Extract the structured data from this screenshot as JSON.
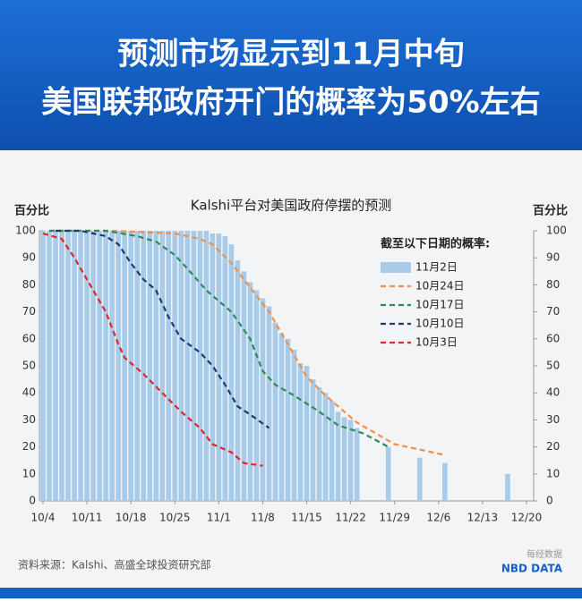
{
  "header": {
    "title_lines": [
      "预测市场显示到11月中旬",
      "美国联邦政府开门的概率为50%左右"
    ]
  },
  "chart_data": {
    "type": "combo",
    "title": "Kalshi平台对美国政府停摆的预测",
    "y_label": "百分比",
    "y2_label": "百分比",
    "legend_title": "截至以下日期的概率:",
    "xlim": [
      "10/4",
      "12/20"
    ],
    "xticks": [
      "10/4",
      "10/11",
      "10/18",
      "10/25",
      "11/1",
      "11/8",
      "11/15",
      "11/22",
      "11/29",
      "12/6",
      "12/13",
      "12/20"
    ],
    "ylim": [
      0,
      100
    ],
    "yticks": [
      0,
      10,
      20,
      30,
      40,
      50,
      60,
      70,
      80,
      90,
      100
    ],
    "y2lim": [
      0,
      100
    ],
    "y2ticks": [
      0,
      10,
      20,
      30,
      40,
      50,
      60,
      70,
      80,
      90,
      100
    ],
    "series": [
      {
        "name": "11月2日",
        "type": "bar",
        "color": "#a8cbea",
        "x": [
          "10/4",
          "10/5",
          "10/6",
          "10/7",
          "10/8",
          "10/9",
          "10/10",
          "10/11",
          "10/12",
          "10/13",
          "10/14",
          "10/15",
          "10/16",
          "10/17",
          "10/18",
          "10/19",
          "10/20",
          "10/21",
          "10/22",
          "10/23",
          "10/24",
          "10/25",
          "10/26",
          "10/27",
          "10/28",
          "10/29",
          "10/30",
          "10/31",
          "11/1",
          "11/2",
          "11/3",
          "11/4",
          "11/5",
          "11/6",
          "11/7",
          "11/8",
          "11/9",
          "11/10",
          "11/11",
          "11/12",
          "11/13",
          "11/14",
          "11/15",
          "11/16",
          "11/17",
          "11/18",
          "11/19",
          "11/20",
          "11/21",
          "11/22",
          "11/23",
          "11/28",
          "12/3",
          "12/7",
          "12/17"
        ],
        "values": [
          100,
          100,
          100,
          100,
          100,
          100,
          100,
          100,
          100,
          100,
          100,
          100,
          100,
          100,
          100,
          100,
          100,
          100,
          100,
          100,
          100,
          100,
          100,
          100,
          100,
          100,
          100,
          99,
          99,
          98,
          95,
          89,
          85,
          81,
          78,
          75,
          72,
          66,
          62,
          60,
          56,
          51,
          50,
          45,
          42,
          40,
          37,
          33,
          31,
          30,
          27,
          20,
          16,
          14,
          10
        ]
      },
      {
        "name": "10月24日",
        "type": "line",
        "style": "dashed",
        "color": "#f0904a",
        "x": [
          "10/5",
          "10/15",
          "10/25",
          "10/29",
          "10/31",
          "11/3",
          "11/6",
          "11/9",
          "11/12",
          "11/15",
          "11/18",
          "11/21",
          "11/23",
          "11/26",
          "11/29",
          "12/3",
          "12/7"
        ],
        "values": [
          100,
          100,
          99,
          97,
          95,
          88,
          79,
          70,
          58,
          46,
          39,
          33,
          29,
          25,
          21,
          19,
          17
        ]
      },
      {
        "name": "10月17日",
        "type": "line",
        "style": "dashed",
        "color": "#2e8b57",
        "x": [
          "10/5",
          "10/14",
          "10/19",
          "10/22",
          "10/25",
          "10/27",
          "10/30",
          "11/3",
          "11/6",
          "11/8",
          "11/10",
          "11/13",
          "11/17",
          "11/20",
          "11/24",
          "11/28"
        ],
        "values": [
          100,
          100,
          98,
          96,
          91,
          86,
          78,
          70,
          60,
          48,
          43,
          39,
          33,
          28,
          25,
          20
        ]
      },
      {
        "name": "10月10日",
        "type": "line",
        "style": "dashed",
        "color": "#1f3b73",
        "x": [
          "10/6",
          "10/10",
          "10/14",
          "10/16",
          "10/18",
          "10/20",
          "10/22",
          "10/24",
          "10/26",
          "10/29",
          "10/31",
          "11/2",
          "11/4",
          "11/6",
          "11/9"
        ],
        "values": [
          100,
          100,
          98,
          95,
          88,
          82,
          78,
          68,
          60,
          55,
          50,
          43,
          35,
          32,
          27
        ]
      },
      {
        "name": "10月3日",
        "type": "line",
        "style": "dashed",
        "color": "#e0262a",
        "x": [
          "10/4",
          "10/7",
          "10/9",
          "10/11",
          "10/14",
          "10/16",
          "10/17",
          "10/20",
          "10/23",
          "10/26",
          "10/29",
          "10/31",
          "11/3",
          "11/5",
          "11/8"
        ],
        "values": [
          99,
          97,
          90,
          82,
          70,
          58,
          53,
          47,
          40,
          33,
          27,
          21,
          18,
          14,
          13
        ]
      }
    ]
  },
  "footer": {
    "source": "资料来源：Kalshi、高盛全球投资研究部",
    "logo_cn": "每经数据",
    "logo_en": "NBD DATA"
  }
}
